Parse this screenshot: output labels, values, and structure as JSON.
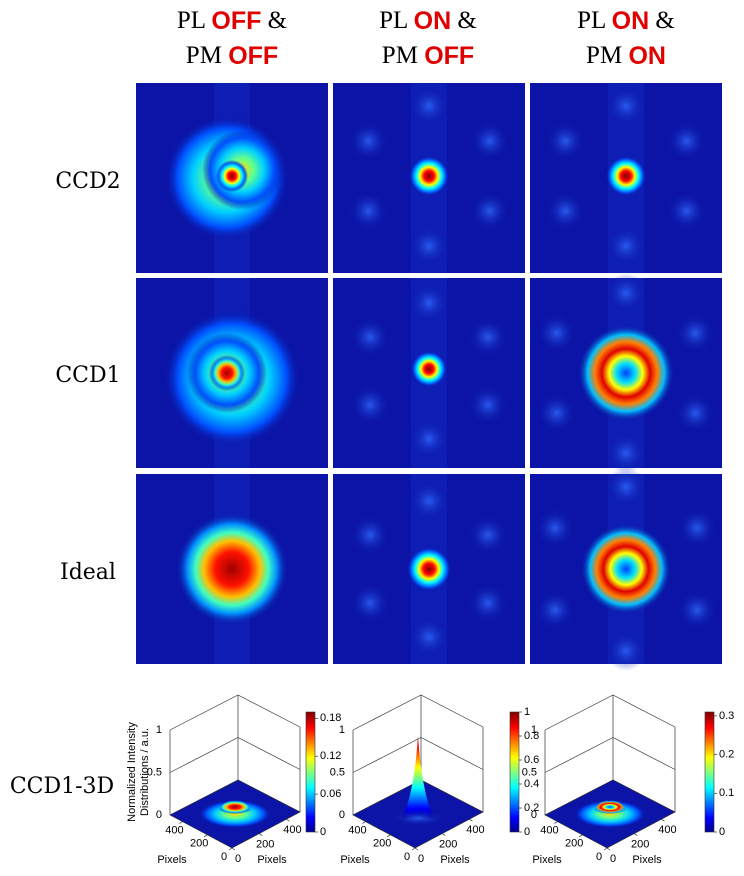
{
  "columns": [
    {
      "line1": {
        "label": "PL",
        "state": "OFF",
        "sep": "&"
      },
      "line2": {
        "label": "PM",
        "state": "OFF"
      }
    },
    {
      "line1": {
        "label": "PL",
        "state": "ON",
        "sep": "&"
      },
      "line2": {
        "label": "PM",
        "state": "OFF"
      }
    },
    {
      "line1": {
        "label": "PL",
        "state": "ON",
        "sep": "&"
      },
      "line2": {
        "label": "PM",
        "state": "ON"
      }
    }
  ],
  "rows": [
    "CCD2",
    "CCD1",
    "Ideal"
  ],
  "plots_3d": {
    "row_label": "CCD1-3D",
    "z_label": [
      "Normalized Intensity",
      "Distributions / a.u."
    ],
    "x_label": "Pixels",
    "y_label": "Pixels",
    "zlim": [
      0,
      1
    ],
    "zticks": [
      0,
      0.5,
      1
    ],
    "floor_lim": [
      0,
      500
    ],
    "floor_ticks": [
      0,
      200,
      400
    ],
    "colorbars": [
      {
        "clim": [
          0,
          0.19
        ],
        "ticks": [
          0,
          0.06,
          0.12,
          0.18
        ]
      },
      {
        "clim": [
          0,
          1
        ],
        "ticks": [
          0,
          0.2,
          0.4,
          0.6,
          0.8,
          1
        ]
      },
      {
        "clim": [
          0,
          0.31
        ],
        "ticks": [
          0,
          0.1,
          0.2,
          0.3
        ]
      }
    ]
  }
}
